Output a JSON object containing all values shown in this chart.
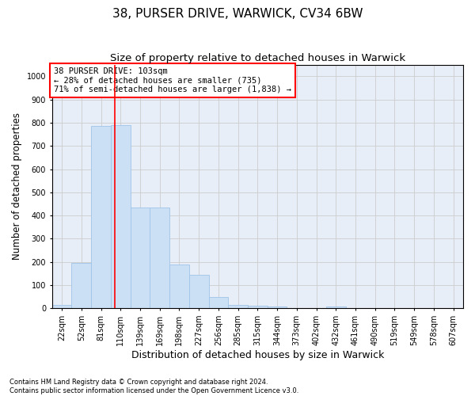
{
  "title": "38, PURSER DRIVE, WARWICK, CV34 6BW",
  "subtitle": "Size of property relative to detached houses in Warwick",
  "xlabel": "Distribution of detached houses by size in Warwick",
  "ylabel": "Number of detached properties",
  "bin_labels": [
    "22sqm",
    "52sqm",
    "81sqm",
    "110sqm",
    "139sqm",
    "169sqm",
    "198sqm",
    "227sqm",
    "256sqm",
    "285sqm",
    "315sqm",
    "344sqm",
    "373sqm",
    "402sqm",
    "432sqm",
    "461sqm",
    "490sqm",
    "519sqm",
    "549sqm",
    "578sqm",
    "607sqm"
  ],
  "bar_values": [
    15,
    195,
    785,
    790,
    435,
    435,
    190,
    145,
    50,
    15,
    10,
    8,
    0,
    0,
    8,
    0,
    0,
    0,
    0,
    0,
    0
  ],
  "bar_color": "#cce0f5",
  "bar_edge_color": "#a0c4e8",
  "property_line_bin_index": 2.72,
  "vline_color": "red",
  "annotation_text": "38 PURSER DRIVE: 103sqm\n← 28% of detached houses are smaller (735)\n71% of semi-detached houses are larger (1,838) →",
  "annotation_box_color": "white",
  "annotation_box_edge": "red",
  "ylim": [
    0,
    1050
  ],
  "yticks": [
    0,
    100,
    200,
    300,
    400,
    500,
    600,
    700,
    800,
    900,
    1000
  ],
  "grid_color": "#cccccc",
  "background_color": "#e8eef7",
  "footnote": "Contains HM Land Registry data © Crown copyright and database right 2024.\nContains public sector information licensed under the Open Government Licence v3.0.",
  "title_fontsize": 11,
  "subtitle_fontsize": 9.5,
  "xlabel_fontsize": 9,
  "ylabel_fontsize": 8.5,
  "tick_fontsize": 7,
  "annot_fontsize": 7.5,
  "footnote_fontsize": 6
}
